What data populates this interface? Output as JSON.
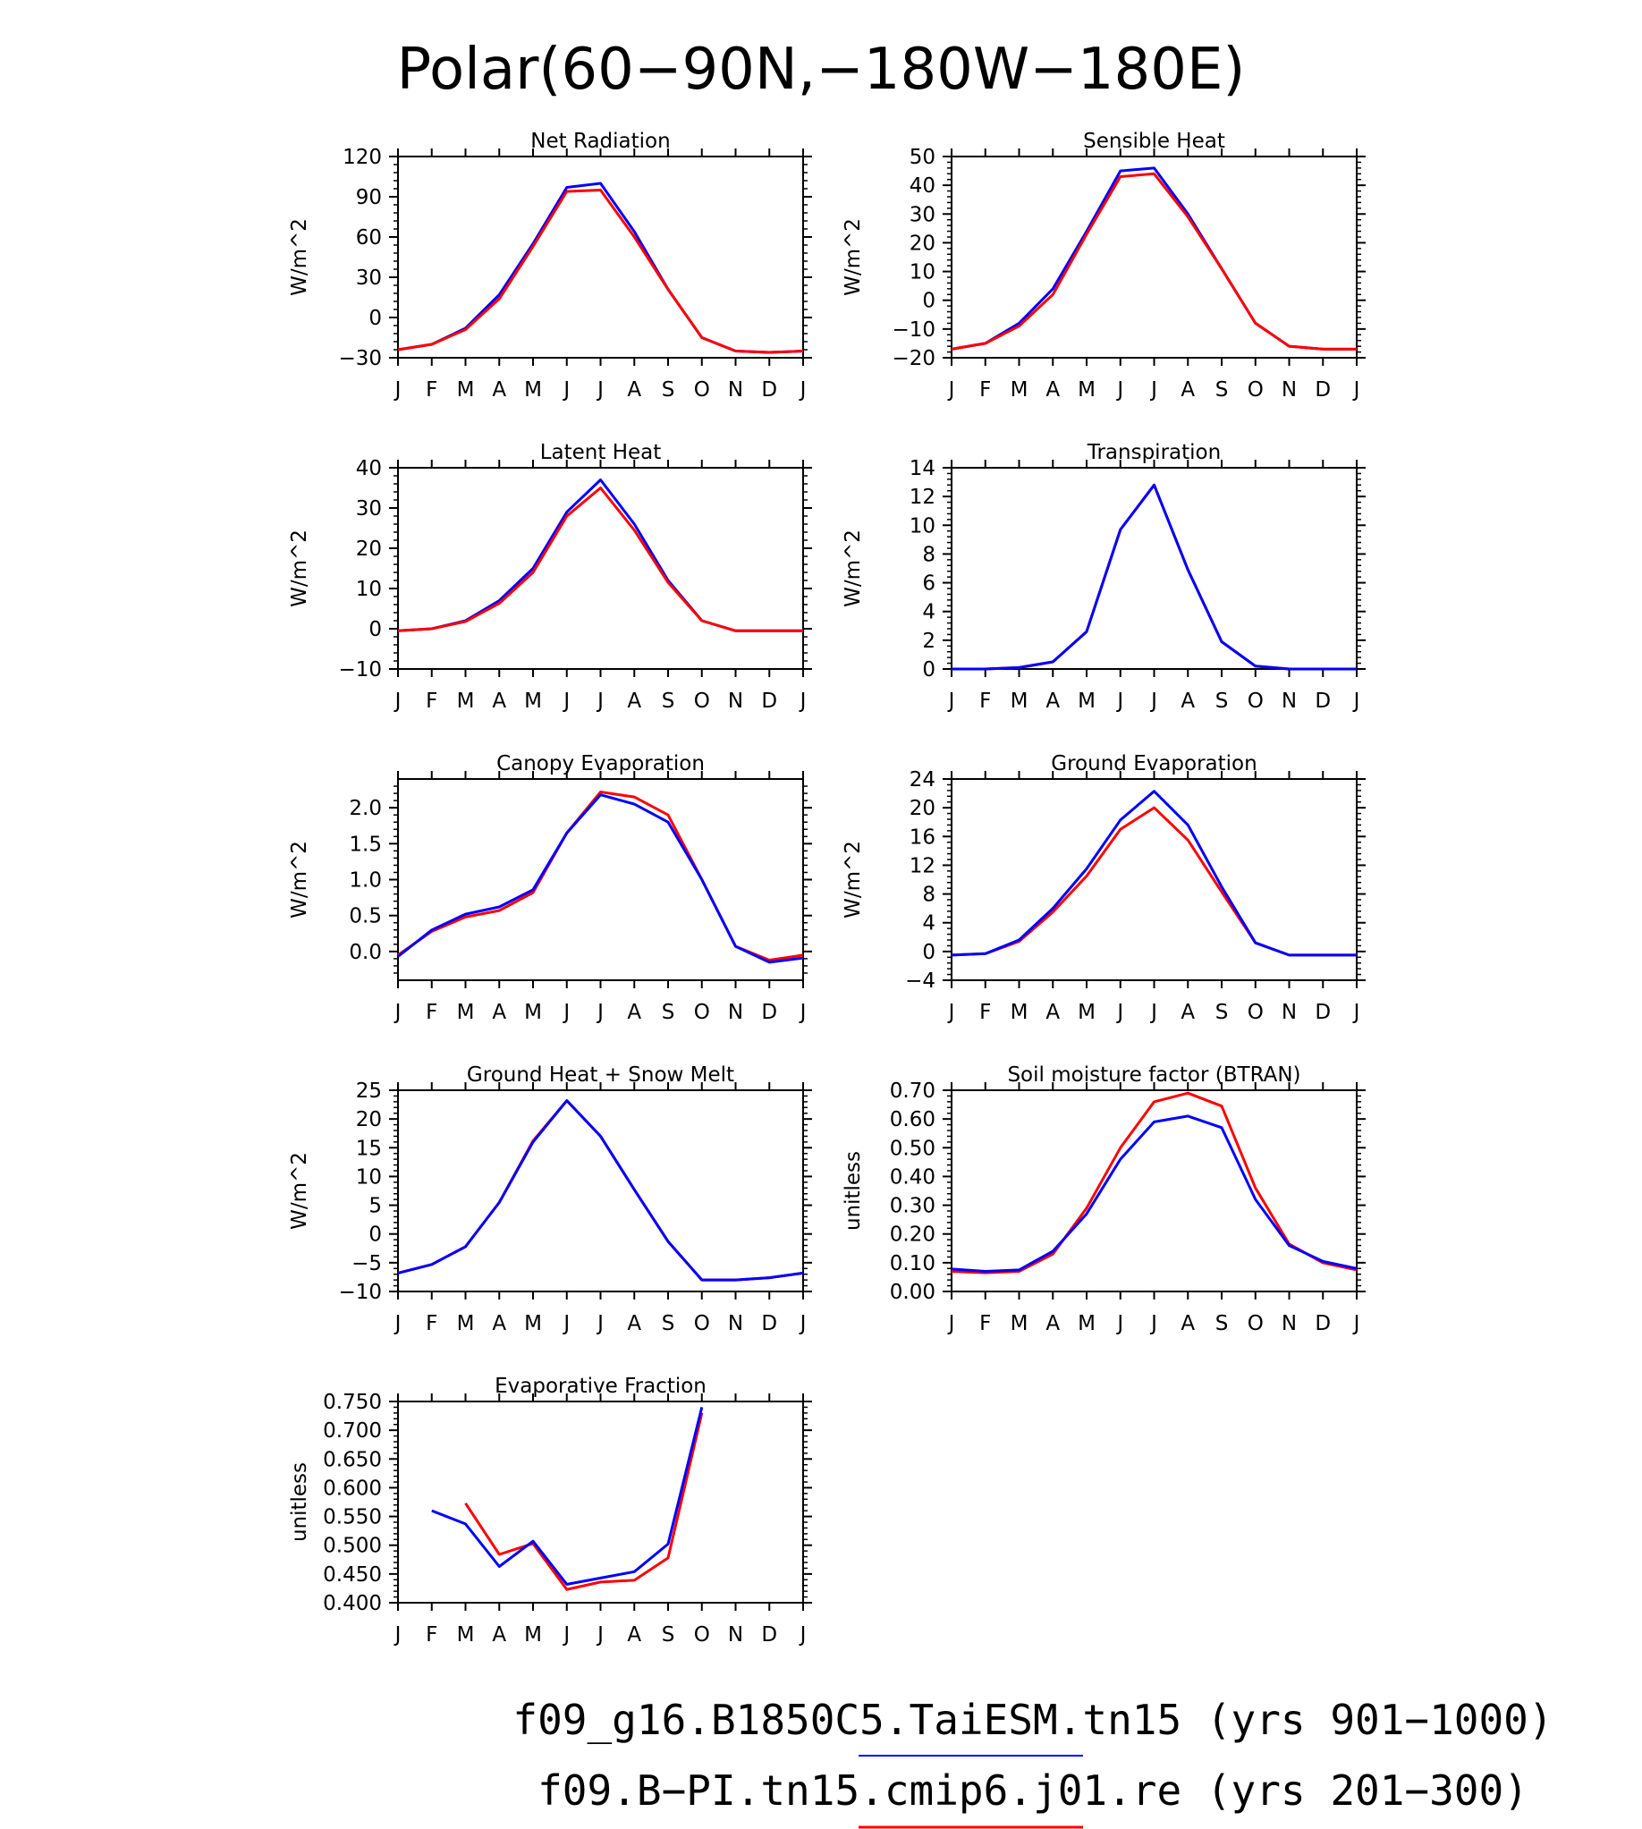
{
  "figure": {
    "title": "Polar(60−90N,−180W−180E)",
    "legend": [
      {
        "label": "f09_g16.B1850C5.TaiESM.tn15 (yrs 901−1000)",
        "color": "#0000ff"
      },
      {
        "label": "f09.B−PI.tn15.cmip6.j01.re (yrs 201−300)",
        "color": "#ff0000"
      }
    ]
  },
  "chart_data": [
    {
      "type": "line",
      "title": "Net Radiation",
      "ylabel": "W/m^2",
      "x": [
        "J",
        "F",
        "M",
        "A",
        "M",
        "J",
        "J",
        "A",
        "S",
        "O",
        "N",
        "D",
        "J"
      ],
      "ylim": [
        -30,
        120
      ],
      "yticks": [
        -30,
        0,
        30,
        60,
        90,
        120
      ],
      "ytick_labels": [
        "−30",
        "0",
        "30",
        "60",
        "90",
        "120"
      ],
      "series": [
        {
          "color": "#0000ff",
          "values": [
            -24,
            -20,
            -8,
            17,
            55,
            97,
            100,
            64,
            21,
            -15,
            -25,
            -26,
            -25
          ]
        },
        {
          "color": "#ff0000",
          "values": [
            -24,
            -20,
            -9,
            14,
            53,
            94,
            95,
            60,
            21,
            -15,
            -25,
            -26,
            -25
          ]
        }
      ]
    },
    {
      "type": "line",
      "title": "Sensible Heat",
      "ylabel": "W/m^2",
      "x": [
        "J",
        "F",
        "M",
        "A",
        "M",
        "J",
        "J",
        "A",
        "S",
        "O",
        "N",
        "D",
        "J"
      ],
      "ylim": [
        -20,
        50
      ],
      "yticks": [
        -20,
        -10,
        0,
        10,
        20,
        30,
        40,
        50
      ],
      "ytick_labels": [
        "−20",
        "−10",
        "0",
        "10",
        "20",
        "30",
        "40",
        "50"
      ],
      "series": [
        {
          "color": "#0000ff",
          "values": [
            -17,
            -15,
            -8,
            4,
            24,
            45,
            46,
            30,
            11,
            -8,
            -16,
            -17,
            -17
          ]
        },
        {
          "color": "#ff0000",
          "values": [
            -17,
            -15,
            -9,
            2,
            23,
            43,
            44,
            29,
            11,
            -8,
            -16,
            -17,
            -17
          ]
        }
      ]
    },
    {
      "type": "line",
      "title": "Latent Heat",
      "ylabel": "W/m^2",
      "x": [
        "J",
        "F",
        "M",
        "A",
        "M",
        "J",
        "J",
        "A",
        "S",
        "O",
        "N",
        "D",
        "J"
      ],
      "ylim": [
        -10,
        40
      ],
      "yticks": [
        -10,
        0,
        10,
        20,
        30,
        40
      ],
      "ytick_labels": [
        "−10",
        "0",
        "10",
        "20",
        "30",
        "40"
      ],
      "series": [
        {
          "color": "#0000ff",
          "values": [
            -0.5,
            0,
            2,
            7,
            15,
            29,
            37,
            26,
            12,
            2,
            -0.5,
            -0.5,
            -0.5
          ]
        },
        {
          "color": "#ff0000",
          "values": [
            -0.5,
            0,
            1.8,
            6.3,
            14,
            28,
            35,
            24.5,
            11.5,
            2,
            -0.5,
            -0.5,
            -0.5
          ]
        }
      ]
    },
    {
      "type": "line",
      "title": "Transpiration",
      "ylabel": "W/m^2",
      "x": [
        "J",
        "F",
        "M",
        "A",
        "M",
        "J",
        "J",
        "A",
        "S",
        "O",
        "N",
        "D",
        "J"
      ],
      "ylim": [
        0,
        14
      ],
      "yticks": [
        0,
        2,
        4,
        6,
        8,
        10,
        12,
        14
      ],
      "ytick_labels": [
        "0",
        "2",
        "4",
        "6",
        "8",
        "10",
        "12",
        "14"
      ],
      "series": [
        {
          "color": "#ff0000",
          "values": [
            0,
            0,
            0.1,
            0.5,
            2.6,
            9.7,
            12.8,
            6.9,
            1.9,
            0.2,
            0,
            0,
            0
          ]
        },
        {
          "color": "#0000ff",
          "values": [
            0,
            0,
            0.1,
            0.5,
            2.6,
            9.7,
            12.8,
            6.9,
            1.9,
            0.2,
            0,
            0,
            0
          ]
        }
      ]
    },
    {
      "type": "line",
      "title": "Canopy Evaporation",
      "ylabel": "W/m^2",
      "x": [
        "J",
        "F",
        "M",
        "A",
        "M",
        "J",
        "J",
        "A",
        "S",
        "O",
        "N",
        "D",
        "J"
      ],
      "ylim": [
        -0.4,
        2.4
      ],
      "yticks": [
        0,
        0.5,
        1.0,
        1.5,
        2.0
      ],
      "ytick_labels": [
        "0.0",
        "0.5",
        "1.0",
        "1.5",
        "2.0"
      ],
      "series": [
        {
          "color": "#ff0000",
          "values": [
            -0.05,
            0.28,
            0.48,
            0.57,
            0.82,
            1.65,
            2.22,
            2.15,
            1.9,
            1.0,
            0.07,
            -0.12,
            -0.05
          ]
        },
        {
          "color": "#0000ff",
          "values": [
            -0.07,
            0.3,
            0.52,
            0.62,
            0.86,
            1.65,
            2.18,
            2.05,
            1.8,
            1.0,
            0.07,
            -0.15,
            -0.09
          ]
        }
      ]
    },
    {
      "type": "line",
      "title": "Ground Evaporation",
      "ylabel": "W/m^2",
      "x": [
        "J",
        "F",
        "M",
        "A",
        "M",
        "J",
        "J",
        "A",
        "S",
        "O",
        "N",
        "D",
        "J"
      ],
      "ylim": [
        -4,
        24
      ],
      "yticks": [
        -4,
        0,
        4,
        8,
        12,
        16,
        20,
        24
      ],
      "ytick_labels": [
        "−4",
        "0",
        "4",
        "8",
        "12",
        "16",
        "20",
        "24"
      ],
      "series": [
        {
          "color": "#ff0000",
          "values": [
            -0.5,
            -0.3,
            1.4,
            5.5,
            10.5,
            17,
            20,
            15.5,
            8.3,
            1.2,
            -0.5,
            -0.5,
            -0.5
          ]
        },
        {
          "color": "#0000ff",
          "values": [
            -0.5,
            -0.3,
            1.6,
            6,
            11.5,
            18.3,
            22.3,
            17.6,
            9,
            1.2,
            -0.5,
            -0.5,
            -0.5
          ]
        }
      ]
    },
    {
      "type": "line",
      "title": "Ground Heat + Snow Melt",
      "ylabel": "W/m^2",
      "x": [
        "J",
        "F",
        "M",
        "A",
        "M",
        "J",
        "J",
        "A",
        "S",
        "O",
        "N",
        "D",
        "J"
      ],
      "ylim": [
        -10,
        25
      ],
      "yticks": [
        -10,
        -5,
        0,
        5,
        10,
        15,
        20,
        25
      ],
      "ytick_labels": [
        "−10",
        "−5",
        "0",
        "5",
        "10",
        "15",
        "20",
        "25"
      ],
      "series": [
        {
          "color": "#ff0000",
          "values": [
            -6.8,
            -5.3,
            -2.2,
            5.5,
            16.2,
            23.2,
            17,
            7.7,
            -1.3,
            -8,
            -8,
            -7.6,
            -6.8
          ]
        },
        {
          "color": "#0000ff",
          "values": [
            -6.8,
            -5.3,
            -2.2,
            5.5,
            16,
            23.2,
            17,
            7.7,
            -1.3,
            -8,
            -8,
            -7.6,
            -6.8
          ]
        }
      ]
    },
    {
      "type": "line",
      "title": "Soil moisture factor (BTRAN)",
      "ylabel": "unitless",
      "x": [
        "J",
        "F",
        "M",
        "A",
        "M",
        "J",
        "J",
        "A",
        "S",
        "O",
        "N",
        "D",
        "J"
      ],
      "ylim": [
        0,
        0.7
      ],
      "yticks": [
        0,
        0.1,
        0.2,
        0.3,
        0.4,
        0.5,
        0.6,
        0.7
      ],
      "ytick_labels": [
        "0.00",
        "0.10",
        "0.20",
        "0.30",
        "0.40",
        "0.50",
        "0.60",
        "0.70"
      ],
      "series": [
        {
          "color": "#ff0000",
          "values": [
            0.07,
            0.065,
            0.07,
            0.13,
            0.29,
            0.5,
            0.66,
            0.69,
            0.645,
            0.36,
            0.165,
            0.1,
            0.075
          ]
        },
        {
          "color": "#0000ff",
          "values": [
            0.078,
            0.07,
            0.075,
            0.14,
            0.27,
            0.46,
            0.59,
            0.61,
            0.57,
            0.32,
            0.16,
            0.105,
            0.08
          ]
        }
      ]
    },
    {
      "type": "line",
      "title": "Evaporative Fraction",
      "ylabel": "unitless",
      "x": [
        "J",
        "F",
        "M",
        "A",
        "M",
        "J",
        "J",
        "A",
        "S",
        "O",
        "N",
        "D",
        "J"
      ],
      "ylim": [
        0.4,
        0.75
      ],
      "yticks": [
        0.4,
        0.45,
        0.5,
        0.55,
        0.6,
        0.65,
        0.7,
        0.75
      ],
      "ytick_labels": [
        "0.400",
        "0.450",
        "0.500",
        "0.550",
        "0.600",
        "0.650",
        "0.700",
        "0.750"
      ],
      "series": [
        {
          "color": "#ff0000",
          "values": [
            null,
            null,
            0.573,
            0.484,
            0.503,
            0.423,
            0.436,
            0.439,
            0.478,
            0.73,
            null,
            null,
            null
          ]
        },
        {
          "color": "#0000ff",
          "values": [
            null,
            0.56,
            0.537,
            0.463,
            0.507,
            0.432,
            0.443,
            0.454,
            0.502,
            0.74,
            null,
            null,
            null
          ]
        }
      ]
    }
  ]
}
